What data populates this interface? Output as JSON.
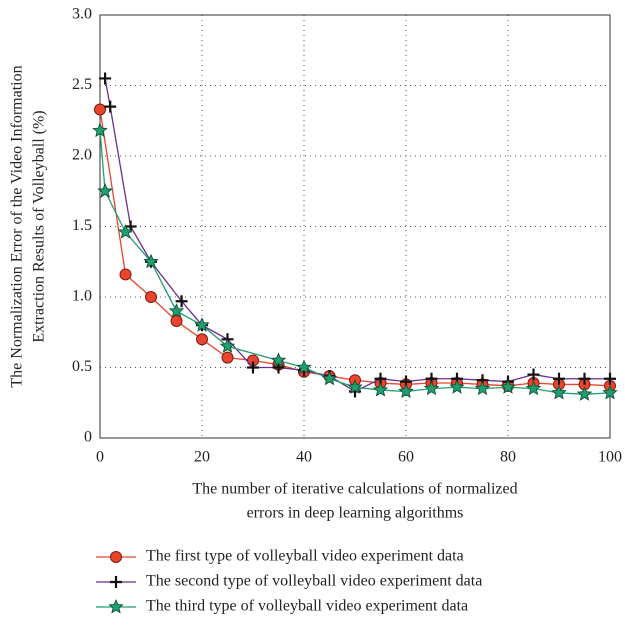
{
  "chart_data": {
    "type": "line",
    "y_label": [
      "The Normalization Error of the Video Information",
      "Extraction Results of Volleyball (%)"
    ],
    "x_label": [
      "The number of iterative calculations of normalized",
      "errors in deep learning algorithms"
    ],
    "xlim": [
      0,
      100
    ],
    "xticks": [
      0,
      20,
      40,
      60,
      80,
      100
    ],
    "ylim": [
      0,
      3
    ],
    "yticks": [
      0,
      0.5,
      {
        "value": 1,
        "label": "1.0"
      },
      1.5,
      {
        "value": 2,
        "label": "2.0"
      },
      2.5,
      {
        "value": 3,
        "label": "3.0"
      }
    ],
    "grid": true,
    "legend": "bottom",
    "series": [
      {
        "name": "The first type of volleyball video experiment data",
        "color": "#e8452c",
        "marker": "circle",
        "x": [
          0,
          5,
          10,
          15,
          20,
          25,
          30,
          35,
          40,
          45,
          50,
          55,
          60,
          65,
          70,
          75,
          80,
          85,
          90,
          95,
          100
        ],
        "values": [
          2.33,
          1.16,
          1.0,
          0.83,
          0.7,
          0.57,
          0.55,
          0.52,
          0.47,
          0.44,
          0.41,
          0.39,
          0.38,
          0.39,
          0.39,
          0.38,
          0.37,
          0.39,
          0.38,
          0.38,
          0.37
        ]
      },
      {
        "name": "The second type of volleyball video experiment data",
        "color": "#6a2c91",
        "marker": "plus",
        "x": [
          1,
          2,
          6,
          10,
          16,
          20,
          25,
          30,
          35,
          40,
          45,
          50,
          55,
          60,
          65,
          70,
          75,
          80,
          85,
          90,
          95,
          100
        ],
        "values": [
          2.55,
          2.35,
          1.5,
          1.25,
          0.97,
          0.8,
          0.7,
          0.5,
          0.5,
          0.48,
          0.44,
          0.33,
          0.42,
          0.4,
          0.42,
          0.42,
          0.41,
          0.4,
          0.45,
          0.42,
          0.42,
          0.42
        ]
      },
      {
        "name": "The third type of volleyball video experiment data",
        "color": "#1f9e6e",
        "marker": "star",
        "x": [
          0,
          1,
          5,
          10,
          15,
          20,
          25,
          35,
          40,
          45,
          50,
          55,
          60,
          65,
          70,
          75,
          80,
          85,
          90,
          95,
          100
        ],
        "values": [
          2.18,
          1.75,
          1.46,
          1.25,
          0.9,
          0.8,
          0.65,
          0.55,
          0.5,
          0.42,
          0.36,
          0.34,
          0.33,
          0.35,
          0.36,
          0.35,
          0.36,
          0.35,
          0.32,
          0.31,
          0.32
        ]
      }
    ]
  }
}
